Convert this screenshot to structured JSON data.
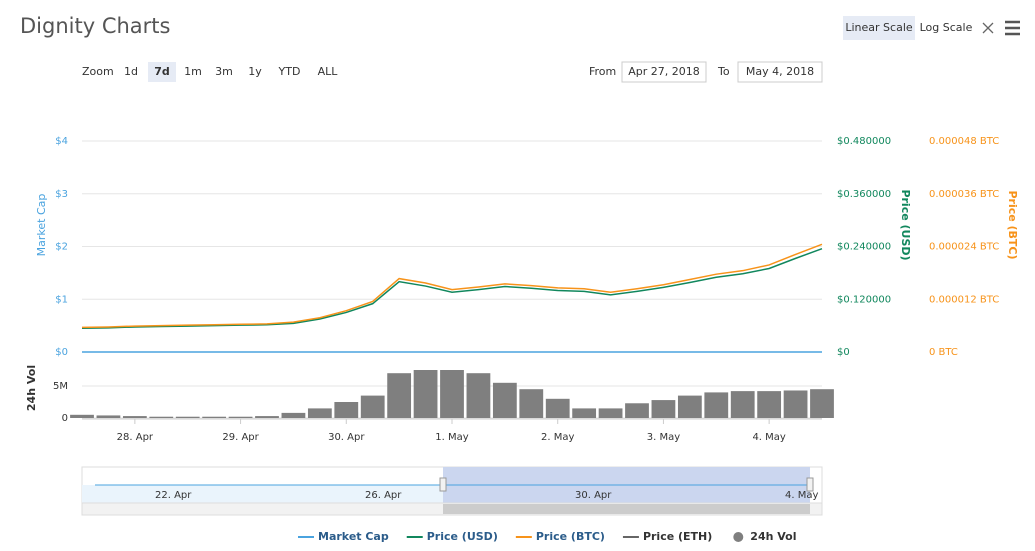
{
  "title": "Dignity Charts",
  "toolbar": {
    "linear": "Linear Scale",
    "log": "Log Scale"
  },
  "zoom": {
    "label": "Zoom",
    "buttons": [
      "1d",
      "7d",
      "1m",
      "3m",
      "1y",
      "YTD",
      "ALL"
    ],
    "active": 1
  },
  "range": {
    "from_label": "From",
    "from": "Apr 27, 2018",
    "to_label": "To",
    "to": "May 4, 2018"
  },
  "navigator": {
    "labels": [
      "22. Apr",
      "26. Apr",
      "30. Apr",
      "4. May"
    ]
  },
  "chart_data": {
    "type": "line",
    "categories": [
      null,
      null,
      "28. Apr",
      null,
      null,
      null,
      "29. Apr",
      null,
      null,
      null,
      "30. Apr",
      null,
      null,
      null,
      "1. May",
      null,
      null,
      null,
      "2. May",
      null,
      null,
      null,
      "3. May",
      null,
      null,
      null,
      "4. May",
      null,
      null
    ],
    "ylabel": "Market Cap",
    "y2label": "Price (USD)",
    "y3label": "Price (BTC)",
    "yvollabel": "24h Vol",
    "ylim": [
      0,
      4
    ],
    "yticks": [
      {
        "value": 0,
        "label": "$0"
      },
      {
        "value": 1,
        "label": "$1"
      },
      {
        "value": 2,
        "label": "$2"
      },
      {
        "value": 3,
        "label": "$3"
      },
      {
        "value": 4,
        "label": "$4"
      }
    ],
    "y2lim": [
      0,
      0.48
    ],
    "y2ticks": [
      {
        "value": 0,
        "label": "$0"
      },
      {
        "value": 0.12,
        "label": "$0.120000"
      },
      {
        "value": 0.24,
        "label": "$0.240000"
      },
      {
        "value": 0.36,
        "label": "$0.360000"
      },
      {
        "value": 0.48,
        "label": "$0.480000"
      }
    ],
    "y3lim": [
      0,
      4.8e-05
    ],
    "y3ticks": [
      {
        "value": 0,
        "label": "0 BTC"
      },
      {
        "value": 1.2e-05,
        "label": "0.000012 BTC"
      },
      {
        "value": 2.4e-05,
        "label": "0.000024 BTC"
      },
      {
        "value": 3.6e-05,
        "label": "0.000036 BTC"
      },
      {
        "value": 4.8e-05,
        "label": "0.000048 BTC"
      }
    ],
    "yvollim": [
      0,
      9375000
    ],
    "yvolticks": [
      0,
      {
        "value": 5000000,
        "label": "5M"
      }
    ],
    "grid": true,
    "series": [
      {
        "name": "Market Cap",
        "color": "#4aa3df",
        "axis": "y",
        "values": [
          0,
          0,
          0,
          0,
          0,
          0,
          0,
          0,
          0,
          0,
          0,
          0,
          0,
          0,
          0,
          0,
          0,
          0,
          0,
          0,
          0,
          0,
          0,
          0,
          0,
          0,
          0,
          0,
          0
        ]
      },
      {
        "name": "Price (USD)",
        "color": "#11875d",
        "axis": "y2",
        "values": [
          0.054,
          0.055,
          0.057,
          0.058,
          0.059,
          0.06,
          0.061,
          0.062,
          0.065,
          0.075,
          0.09,
          0.11,
          0.16,
          0.15,
          0.136,
          0.142,
          0.149,
          0.145,
          0.14,
          0.138,
          0.13,
          0.138,
          0.147,
          0.158,
          0.17,
          0.178,
          0.19,
          0.213,
          0.235
        ]
      },
      {
        "name": "Price (BTC)",
        "color": "#f7931a",
        "axis": "y3",
        "values": [
          5.6e-06,
          5.7e-06,
          5.9e-06,
          6e-06,
          6.1e-06,
          6.2e-06,
          6.3e-06,
          6.4e-06,
          6.8e-06,
          7.8e-06,
          9.4e-06,
          1.15e-05,
          1.67e-05,
          1.57e-05,
          1.42e-05,
          1.48e-05,
          1.55e-05,
          1.51e-05,
          1.46e-05,
          1.44e-05,
          1.36e-05,
          1.44e-05,
          1.53e-05,
          1.65e-05,
          1.77e-05,
          1.85e-05,
          1.98e-05,
          2.22e-05,
          2.45e-05
        ]
      },
      {
        "name": "Price (ETH)",
        "color": "#666666",
        "axis": "y",
        "values": [
          null,
          null,
          null,
          null,
          null,
          null,
          null,
          null,
          null,
          null,
          null,
          null,
          null,
          null,
          null,
          null,
          null,
          null,
          null,
          null,
          null,
          null,
          null,
          null,
          null,
          null,
          null,
          null,
          null
        ]
      },
      {
        "name": "24h Vol",
        "color": "#7f7f7f",
        "axis": "yvol",
        "type": "bar",
        "values": [
          500000,
          400000,
          300000,
          200000,
          200000,
          200000,
          200000,
          300000,
          800000,
          1500000,
          2500000,
          3500000,
          7000000,
          7500000,
          7500000,
          7000000,
          5500000,
          4500000,
          3000000,
          1500000,
          1500000,
          2300000,
          2800000,
          3500000,
          4000000,
          4200000,
          4200000,
          4300000,
          4500000
        ]
      }
    ]
  }
}
